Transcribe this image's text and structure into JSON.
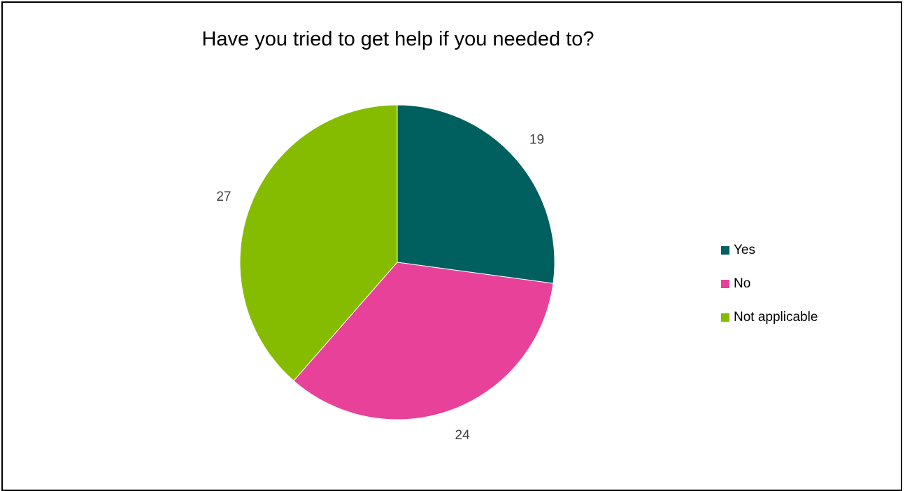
{
  "chart_data": {
    "type": "pie",
    "title": "Have you tried to get help if you needed to?",
    "categories": [
      "Yes",
      "No",
      "Not applicable"
    ],
    "values": [
      19,
      24,
      27
    ],
    "colors": [
      "#00605f",
      "#e8419a",
      "#86bc00"
    ],
    "start_angle_deg": 0,
    "direction": "clockwise",
    "legend_position": "right",
    "data_labels": [
      "19",
      "24",
      "27"
    ]
  }
}
